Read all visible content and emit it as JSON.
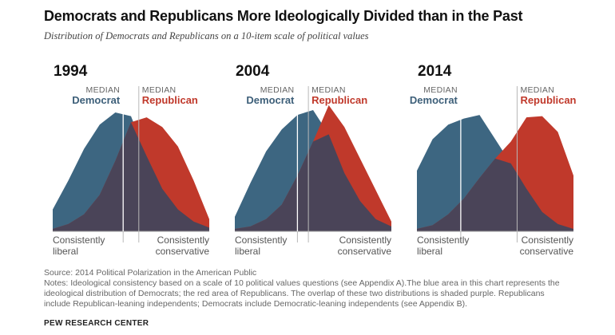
{
  "title": "Democrats and Republicans More Ideologically Divided than in the Past",
  "subtitle": "Distribution of Democrats and Republicans on a 10-item scale of political values",
  "labels": {
    "median": "MEDIAN",
    "democrat": "Democrat",
    "republican": "Republican",
    "left_axis": [
      "Consistently",
      "liberal"
    ],
    "right_axis": [
      "Consistently",
      "conservative"
    ]
  },
  "colors": {
    "democrat": "#3d6681",
    "republican": "#c0392b",
    "overlap": "#4a4458"
  },
  "chart_data": [
    {
      "type": "area",
      "year_label": "1994",
      "x": [
        0,
        0.1,
        0.2,
        0.3,
        0.4,
        0.5,
        0.6,
        0.7,
        0.8,
        0.9,
        1
      ],
      "series": [
        {
          "name": "Democrat",
          "values": [
            0.18,
            0.42,
            0.68,
            0.88,
            0.98,
            0.95,
            0.62,
            0.35,
            0.18,
            0.08,
            0.03
          ]
        },
        {
          "name": "Republican",
          "values": [
            0.02,
            0.06,
            0.14,
            0.3,
            0.58,
            0.9,
            0.94,
            0.86,
            0.7,
            0.42,
            0.1
          ]
        }
      ],
      "median_democrat": 0.45,
      "median_republican": 0.55
    },
    {
      "type": "area",
      "year_label": "2004",
      "x": [
        0,
        0.1,
        0.2,
        0.3,
        0.4,
        0.5,
        0.6,
        0.7,
        0.8,
        0.9,
        1
      ],
      "series": [
        {
          "name": "Democrat",
          "values": [
            0.12,
            0.4,
            0.66,
            0.84,
            0.96,
            1.0,
            0.8,
            0.48,
            0.25,
            0.1,
            0.04
          ]
        },
        {
          "name": "Republican",
          "values": [
            0.02,
            0.04,
            0.1,
            0.22,
            0.46,
            0.74,
            1.04,
            0.86,
            0.6,
            0.34,
            0.08
          ]
        }
      ],
      "median_democrat": 0.4,
      "median_republican": 0.47
    },
    {
      "type": "area",
      "year_label": "2014",
      "x": [
        0,
        0.1,
        0.2,
        0.3,
        0.4,
        0.5,
        0.6,
        0.7,
        0.8,
        0.9,
        1
      ],
      "series": [
        {
          "name": "Democrat",
          "values": [
            0.5,
            0.76,
            0.88,
            0.93,
            0.96,
            0.76,
            0.56,
            0.35,
            0.16,
            0.06,
            0.02
          ]
        },
        {
          "name": "Republican",
          "values": [
            0.02,
            0.05,
            0.14,
            0.27,
            0.44,
            0.6,
            0.74,
            0.94,
            0.95,
            0.82,
            0.46
          ]
        }
      ],
      "median_democrat": 0.28,
      "median_republican": 0.64
    }
  ],
  "footer": {
    "source": "Source: 2014 Political Polarization in the American Public",
    "notes": [
      "Notes: Ideological consistency based on a scale of 10 political values questions (see Appendix A).The blue area in this chart represents the",
      "ideological distribution of Democrats; the red area of Republicans. The overlap of these two distributions is shaded purple. Republicans",
      "include Republican-leaning independents; Democrats include Democratic-leaning independents (see Appendix B)."
    ],
    "brand": "PEW RESEARCH CENTER"
  }
}
